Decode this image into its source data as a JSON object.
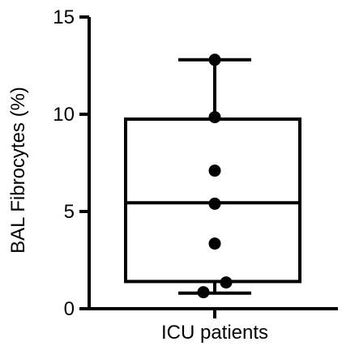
{
  "chart_data": {
    "type": "box",
    "title": "",
    "xlabel": "",
    "ylabel": "BAL Fibrocytes (%)",
    "ylim": [
      0,
      15
    ],
    "yticks": [
      0,
      5,
      10,
      15
    ],
    "categories": [
      "ICU patients"
    ],
    "box": {
      "min": 0.8,
      "q1": 1.4,
      "median": 5.45,
      "q3": 9.75,
      "max": 12.8
    },
    "points": [
      12.8,
      9.85,
      7.1,
      5.4,
      3.35,
      1.35,
      0.85
    ],
    "grid": false,
    "legend": "none",
    "colors": {
      "stroke": "#000000",
      "point": "#000000",
      "background": "#ffffff"
    }
  }
}
